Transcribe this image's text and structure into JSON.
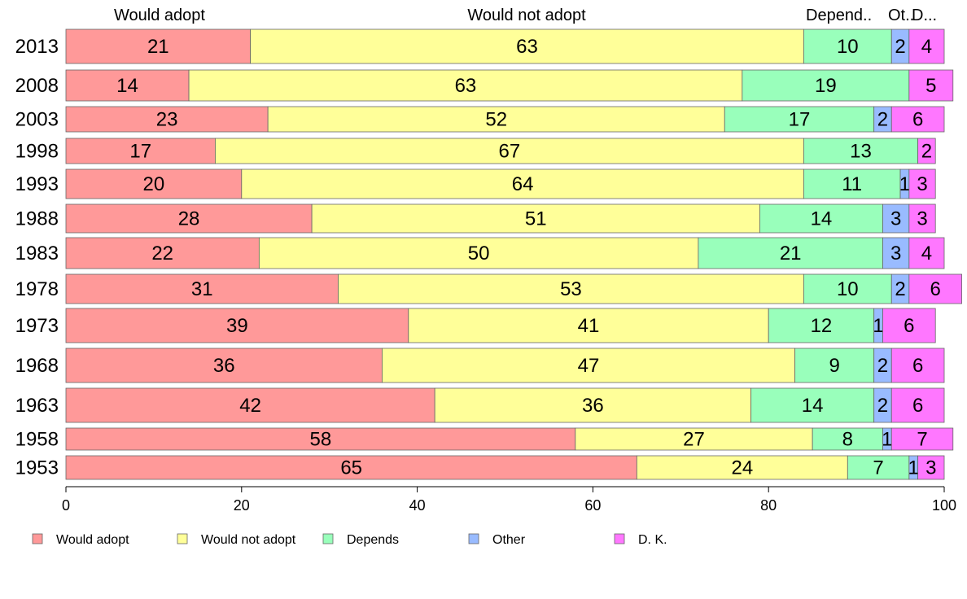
{
  "chart_data": {
    "type": "bar",
    "orientation": "horizontal",
    "stacked": true,
    "title": "",
    "xlabel": "",
    "ylabel": "",
    "xlim": [
      0,
      100
    ],
    "x_ticks": [
      0,
      20,
      40,
      60,
      80,
      100
    ],
    "grid": false,
    "legend_position": "bottom",
    "column_headers": [
      "Would adopt",
      "Would not adopt",
      "Depend..",
      "Ot..",
      "D..."
    ],
    "categories": [
      "2013",
      "2008",
      "2003",
      "1998",
      "1993",
      "1988",
      "1983",
      "1978",
      "1973",
      "1968",
      "1963",
      "1958",
      "1953"
    ],
    "series": [
      {
        "name": "Would adopt",
        "color": "#ff9999",
        "values": [
          21,
          14,
          23,
          17,
          20,
          28,
          22,
          31,
          39,
          36,
          42,
          58,
          65
        ]
      },
      {
        "name": "Would not adopt",
        "color": "#ffff99",
        "values": [
          63,
          63,
          52,
          67,
          64,
          51,
          50,
          53,
          41,
          47,
          36,
          27,
          24
        ]
      },
      {
        "name": "Depends",
        "color": "#99ffbb",
        "values": [
          10,
          19,
          17,
          13,
          11,
          14,
          21,
          10,
          12,
          9,
          14,
          8,
          7
        ]
      },
      {
        "name": "Other",
        "color": "#99bbff",
        "values": [
          2,
          0,
          2,
          0,
          1,
          3,
          3,
          2,
          1,
          2,
          2,
          1,
          1
        ]
      },
      {
        "name": "D. K.",
        "color": "#ff77ff",
        "values": [
          4,
          5,
          6,
          2,
          3,
          3,
          4,
          6,
          6,
          6,
          6,
          7,
          3
        ]
      }
    ]
  }
}
